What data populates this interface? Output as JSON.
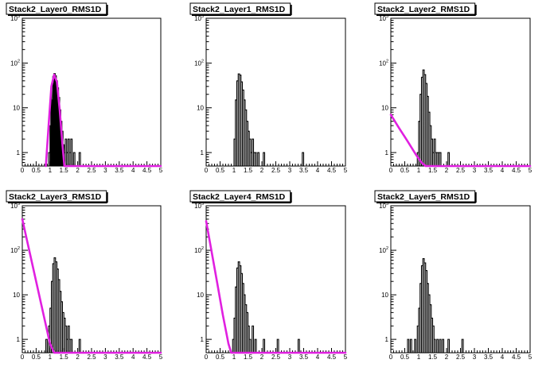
{
  "colors": {
    "histogram": "#000000",
    "fit": "#e020e0",
    "background": "#ffffff"
  },
  "chart_data": [
    {
      "type": "histogram",
      "title": "Stack2_Layer0_RMS1D",
      "xlim": [
        0,
        5
      ],
      "ylim": [
        0.5,
        1000
      ],
      "yscale": "log",
      "xticks": [
        "0",
        "0.5",
        "1",
        "1.5",
        "2",
        "2.5",
        "3",
        "3.5",
        "4",
        "4.5",
        "5"
      ],
      "yticks": [
        "1",
        "10",
        "10²",
        "10³"
      ],
      "histogram": [
        [
          0.95,
          1
        ],
        [
          1.0,
          4
        ],
        [
          1.03,
          15
        ],
        [
          1.06,
          35
        ],
        [
          1.1,
          50
        ],
        [
          1.14,
          58
        ],
        [
          1.18,
          52
        ],
        [
          1.22,
          40
        ],
        [
          1.26,
          28
        ],
        [
          1.3,
          17
        ],
        [
          1.34,
          9
        ],
        [
          1.38,
          5
        ],
        [
          1.42,
          3
        ],
        [
          1.46,
          1.5
        ],
        [
          1.5,
          1
        ],
        [
          1.55,
          2
        ],
        [
          1.6,
          1
        ],
        [
          1.65,
          2
        ],
        [
          1.7,
          1
        ],
        [
          1.75,
          2
        ],
        [
          1.85,
          1
        ],
        [
          2.05,
          1
        ]
      ],
      "fit": {
        "type": "gaussian",
        "x": [
          0.85,
          0.95,
          1.05,
          1.15,
          1.25,
          1.35,
          1.45,
          1.52
        ],
        "y": [
          0.5,
          4,
          30,
          55,
          38,
          9,
          1.5,
          0.5
        ]
      }
    },
    {
      "type": "histogram",
      "title": "Stack2_Layer1_RMS1D",
      "xlim": [
        0,
        5
      ],
      "ylim": [
        0.5,
        1000
      ],
      "yscale": "log",
      "xticks": [
        "0",
        "0.5",
        "1",
        "1.5",
        "2",
        "2.5",
        "3",
        "3.5",
        "4",
        "4.5",
        "5"
      ],
      "yticks": [
        "1",
        "10",
        "10²",
        "10³"
      ],
      "histogram": [
        [
          1.0,
          2
        ],
        [
          1.05,
          15
        ],
        [
          1.1,
          40
        ],
        [
          1.15,
          57
        ],
        [
          1.2,
          54
        ],
        [
          1.25,
          38
        ],
        [
          1.3,
          25
        ],
        [
          1.35,
          15
        ],
        [
          1.4,
          9
        ],
        [
          1.45,
          5
        ],
        [
          1.5,
          3
        ],
        [
          1.55,
          2
        ],
        [
          1.6,
          1
        ],
        [
          1.65,
          2
        ],
        [
          1.7,
          1
        ],
        [
          1.75,
          1
        ],
        [
          1.85,
          1
        ],
        [
          2.05,
          1
        ],
        [
          3.45,
          1
        ]
      ]
    },
    {
      "type": "histogram",
      "title": "Stack2_Layer2_RMS1D",
      "xlim": [
        0,
        5
      ],
      "ylim": [
        0.5,
        1000
      ],
      "yscale": "log",
      "xticks": [
        "0",
        "0.5",
        "1",
        "1.5",
        "2",
        "2.5",
        "3",
        "3.5",
        "4",
        "4.5",
        "5"
      ],
      "yticks": [
        "1",
        "10",
        "10²",
        "10³"
      ],
      "histogram": [
        [
          0.95,
          1
        ],
        [
          1.0,
          5
        ],
        [
          1.05,
          20
        ],
        [
          1.1,
          48
        ],
        [
          1.15,
          70
        ],
        [
          1.2,
          55
        ],
        [
          1.25,
          35
        ],
        [
          1.3,
          18
        ],
        [
          1.35,
          8
        ],
        [
          1.4,
          4
        ],
        [
          1.45,
          2
        ],
        [
          1.5,
          1
        ],
        [
          1.55,
          2
        ],
        [
          1.6,
          1
        ],
        [
          1.65,
          1
        ],
        [
          1.7,
          1
        ],
        [
          1.75,
          1
        ],
        [
          2.05,
          1
        ]
      ],
      "fit": {
        "type": "exponential",
        "x": [
          0.0,
          0.3,
          0.6,
          0.9,
          1.1,
          1.25,
          1.4,
          1.5
        ],
        "y": [
          7,
          3.5,
          1.8,
          0.9,
          0.6,
          0.5,
          0.5,
          0.5
        ]
      }
    },
    {
      "type": "histogram",
      "title": "Stack2_Layer3_RMS1D",
      "xlim": [
        0,
        5
      ],
      "ylim": [
        0.5,
        1000
      ],
      "yscale": "log",
      "xticks": [
        "0",
        "0.5",
        "1",
        "1.5",
        "2",
        "2.5",
        "3",
        "3.5",
        "4",
        "4.5",
        "5"
      ],
      "yticks": [
        "1",
        "10",
        "10²",
        "10³"
      ],
      "histogram": [
        [
          0.85,
          1
        ],
        [
          0.95,
          2
        ],
        [
          1.0,
          5
        ],
        [
          1.05,
          20
        ],
        [
          1.1,
          50
        ],
        [
          1.15,
          68
        ],
        [
          1.2,
          55
        ],
        [
          1.25,
          38
        ],
        [
          1.3,
          22
        ],
        [
          1.35,
          12
        ],
        [
          1.4,
          7
        ],
        [
          1.45,
          4
        ],
        [
          1.5,
          3
        ],
        [
          1.55,
          2
        ],
        [
          1.6,
          1
        ],
        [
          1.65,
          2
        ],
        [
          1.7,
          1
        ],
        [
          1.75,
          1
        ],
        [
          2.05,
          1
        ]
      ],
      "fit": {
        "type": "exponential",
        "x": [
          0.0,
          0.25,
          0.5,
          0.75,
          1.0,
          1.15,
          1.3
        ],
        "y": [
          500,
          100,
          20,
          4,
          0.8,
          0.5,
          0.5
        ]
      }
    },
    {
      "type": "histogram",
      "title": "Stack2_Layer4_RMS1D",
      "xlim": [
        0,
        5
      ],
      "ylim": [
        0.5,
        1000
      ],
      "yscale": "log",
      "xticks": [
        "0",
        "0.5",
        "1",
        "1.5",
        "2",
        "2.5",
        "3",
        "3.5",
        "4",
        "4.5",
        "5"
      ],
      "yticks": [
        "1",
        "10",
        "10²",
        "10³"
      ],
      "histogram": [
        [
          0.95,
          1
        ],
        [
          1.0,
          3
        ],
        [
          1.05,
          15
        ],
        [
          1.1,
          40
        ],
        [
          1.15,
          55
        ],
        [
          1.2,
          45
        ],
        [
          1.25,
          30
        ],
        [
          1.3,
          18
        ],
        [
          1.35,
          10
        ],
        [
          1.4,
          6
        ],
        [
          1.45,
          4
        ],
        [
          1.5,
          2
        ],
        [
          1.55,
          1
        ],
        [
          1.65,
          2
        ],
        [
          1.75,
          1
        ],
        [
          2.05,
          1
        ],
        [
          2.55,
          1
        ],
        [
          3.3,
          1
        ]
      ],
      "fit": {
        "type": "exponential",
        "x": [
          0.0,
          0.2,
          0.4,
          0.6,
          0.8,
          0.9,
          1.0
        ],
        "y": [
          450,
          90,
          18,
          3.5,
          0.8,
          0.5,
          0.5
        ]
      }
    },
    {
      "type": "histogram",
      "title": "Stack2_Layer5_RMS1D",
      "xlim": [
        0,
        5
      ],
      "ylim": [
        0.5,
        1000
      ],
      "yscale": "log",
      "xticks": [
        "0",
        "0.5",
        "1",
        "1.5",
        "2",
        "2.5",
        "3",
        "3.5",
        "4",
        "4.5",
        "5"
      ],
      "yticks": [
        "1",
        "10",
        "10²",
        "10³"
      ],
      "histogram": [
        [
          0.6,
          1
        ],
        [
          0.7,
          1
        ],
        [
          0.85,
          1
        ],
        [
          0.95,
          2
        ],
        [
          1.0,
          5
        ],
        [
          1.05,
          18
        ],
        [
          1.1,
          45
        ],
        [
          1.15,
          65
        ],
        [
          1.2,
          52
        ],
        [
          1.25,
          35
        ],
        [
          1.3,
          18
        ],
        [
          1.35,
          10
        ],
        [
          1.4,
          6
        ],
        [
          1.45,
          3
        ],
        [
          1.5,
          2
        ],
        [
          1.55,
          1
        ],
        [
          1.65,
          1
        ],
        [
          1.75,
          1
        ],
        [
          1.85,
          1
        ],
        [
          2.05,
          1
        ],
        [
          2.55,
          1
        ]
      ]
    }
  ]
}
